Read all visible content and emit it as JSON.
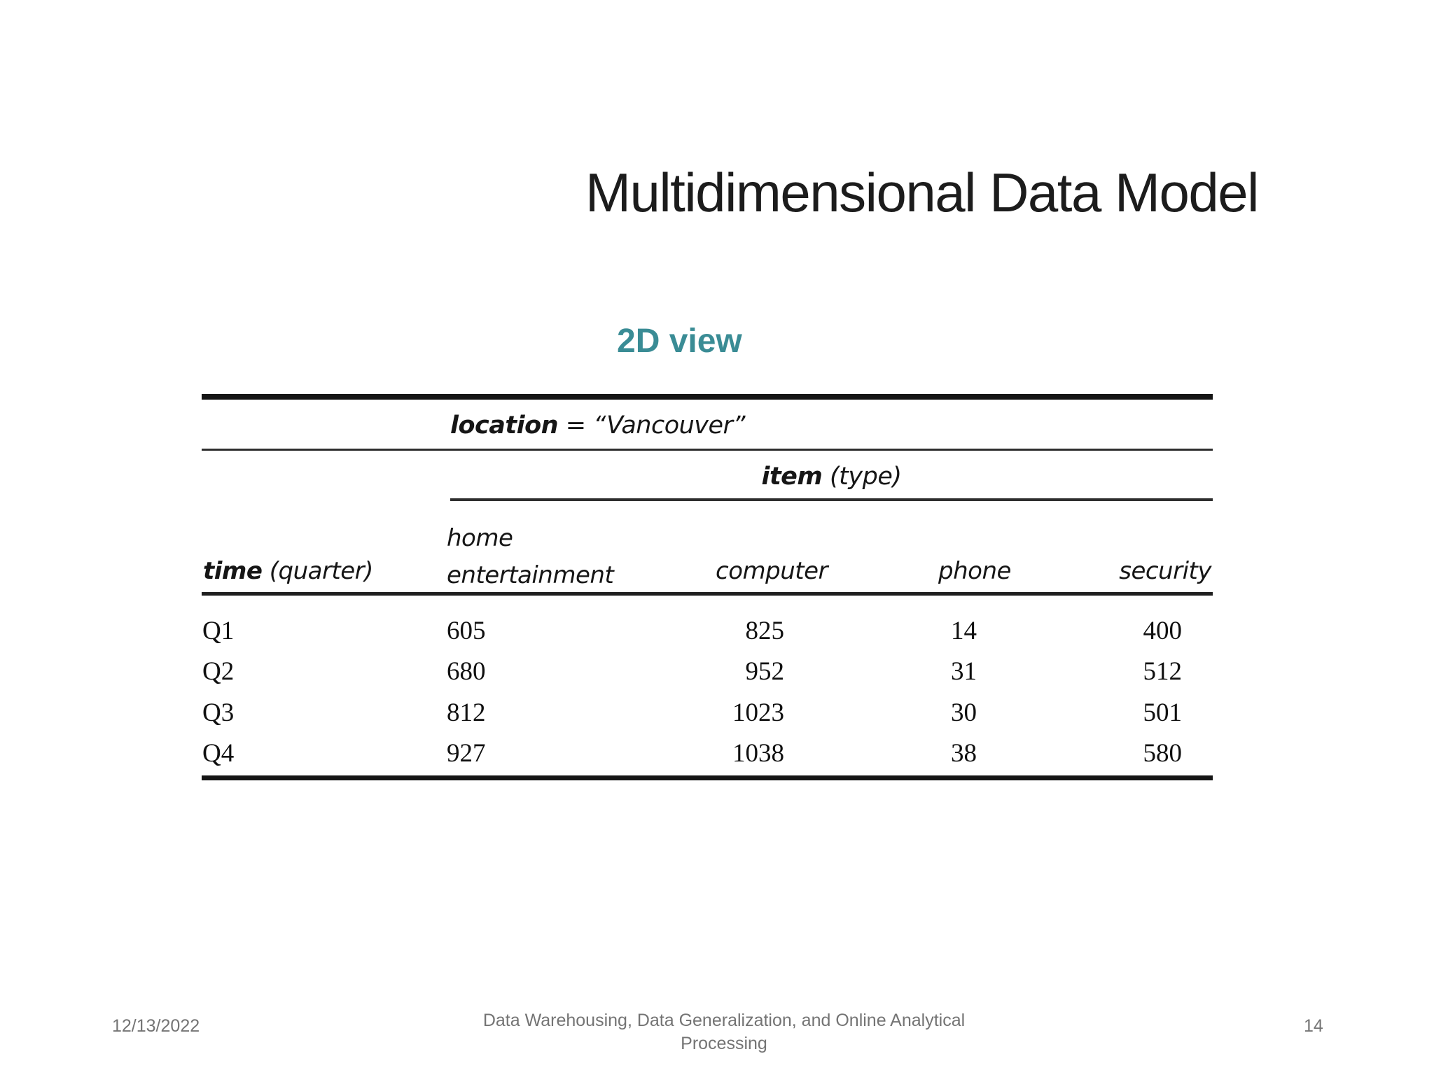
{
  "slide": {
    "title": "Multidimensional Data Model",
    "view_label": "2D view"
  },
  "figure": {
    "location_label": "location",
    "location_value": "= “Vancouver”",
    "item_label": "item",
    "item_qualifier": "(type)",
    "time_label": "time",
    "time_qualifier": "(quarter)",
    "column_headers": [
      "home entertainment",
      "computer",
      "phone",
      "security"
    ],
    "rows": [
      {
        "quarter": "Q1",
        "home_entertainment": "605",
        "computer": "825",
        "phone": "14",
        "security": "400"
      },
      {
        "quarter": "Q2",
        "home_entertainment": "680",
        "computer": "952",
        "phone": "31",
        "security": "512"
      },
      {
        "quarter": "Q3",
        "home_entertainment": "812",
        "computer": "1023",
        "phone": "30",
        "security": "501"
      },
      {
        "quarter": "Q4",
        "home_entertainment": "927",
        "computer": "1038",
        "phone": "38",
        "security": "580"
      }
    ]
  },
  "footer": {
    "date": "12/13/2022",
    "course_title": "Data Warehousing, Data Generalization, and Online Analytical Processing",
    "page_number": "14"
  },
  "colors": {
    "accent_teal": "#3A8C95",
    "footer_gray": "#747474",
    "text_black": "#1c1c1c"
  }
}
